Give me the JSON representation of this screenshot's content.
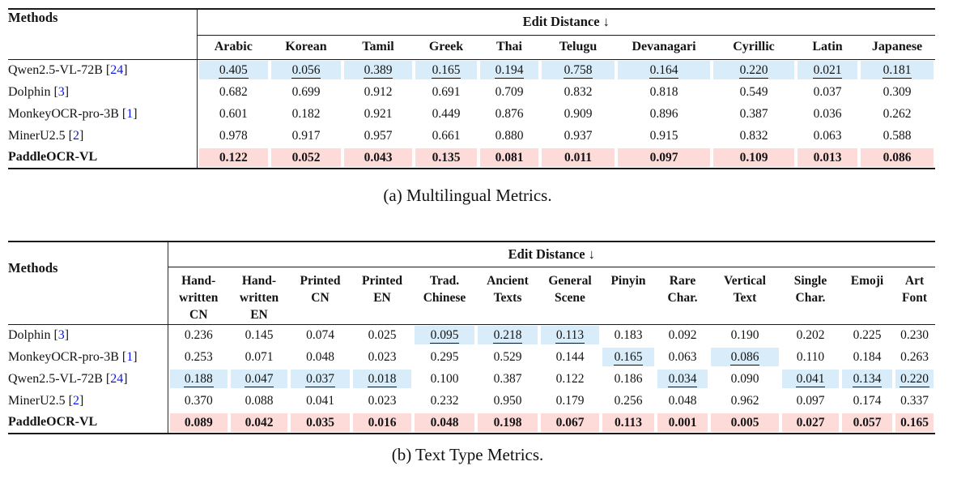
{
  "colors": {
    "highlight_blue": "#d8ecf9",
    "highlight_pink": "#fcdbd9",
    "citation_blue": "#0b16ee",
    "rule_black": "#1b1b1b"
  },
  "table_a": {
    "caption": "(a) Multilingual Metrics.",
    "methods_header": "Methods",
    "span_header": "Edit Distance ↓",
    "columns": [
      "Arabic",
      "Korean",
      "Tamil",
      "Greek",
      "Thai",
      "Telugu",
      "Devanagari",
      "Cyrillic",
      "Latin",
      "Japanese"
    ],
    "rows": [
      {
        "method": "Qwen2.5-VL-72B",
        "cite": "24",
        "row_style": "plain",
        "values": [
          "0.405",
          "0.056",
          "0.389",
          "0.165",
          "0.194",
          "0.758",
          "0.164",
          "0.220",
          "0.021",
          "0.181"
        ],
        "marked": [
          0,
          1,
          2,
          3,
          4,
          5,
          6,
          7,
          8,
          9
        ]
      },
      {
        "method": "Dolphin",
        "cite": "3",
        "row_style": "plain",
        "values": [
          "0.682",
          "0.699",
          "0.912",
          "0.691",
          "0.709",
          "0.832",
          "0.818",
          "0.549",
          "0.037",
          "0.309"
        ],
        "marked": []
      },
      {
        "method": "MonkeyOCR-pro-3B",
        "cite": "1",
        "row_style": "plain",
        "values": [
          "0.601",
          "0.182",
          "0.921",
          "0.449",
          "0.876",
          "0.909",
          "0.896",
          "0.387",
          "0.036",
          "0.262"
        ],
        "marked": []
      },
      {
        "method": "MinerU2.5",
        "cite": "2",
        "row_style": "plain",
        "values": [
          "0.978",
          "0.917",
          "0.957",
          "0.661",
          "0.880",
          "0.937",
          "0.915",
          "0.832",
          "0.063",
          "0.588"
        ],
        "marked": []
      },
      {
        "method": "PaddleOCR-VL",
        "cite": null,
        "row_style": "best-pink",
        "values": [
          "0.122",
          "0.052",
          "0.043",
          "0.135",
          "0.081",
          "0.011",
          "0.097",
          "0.109",
          "0.013",
          "0.086"
        ],
        "marked": []
      }
    ]
  },
  "table_b": {
    "caption": "(b) Text Type Metrics.",
    "methods_header": "Methods",
    "span_header": "Edit Distance ↓",
    "columns": [
      "Hand-written CN",
      "Hand-written EN",
      "Printed CN",
      "Printed EN",
      "Trad. Chinese",
      "Ancient Texts",
      "General Scene",
      "Pinyin",
      "Rare Char.",
      "Vertical Text",
      "Single Char.",
      "Emoji",
      "Art Font"
    ],
    "column_lines": [
      "Hand-\nwritten\nCN",
      "Hand-\nwritten\nEN",
      "Printed\nCN",
      "Printed\nEN",
      "Trad.\nChinese",
      "Ancient\nTexts",
      "General\nScene",
      "Pinyin",
      "Rare\nChar.",
      "Vertical\nText",
      "Single\nChar.",
      "Emoji",
      "Art\nFont"
    ],
    "rows": [
      {
        "method": "Dolphin",
        "cite": "3",
        "row_style": "plain",
        "values": [
          "0.236",
          "0.145",
          "0.074",
          "0.025",
          "0.095",
          "0.218",
          "0.113",
          "0.183",
          "0.092",
          "0.190",
          "0.202",
          "0.225",
          "0.230"
        ],
        "marked": [
          4,
          5,
          6
        ]
      },
      {
        "method": "MonkeyOCR-pro-3B",
        "cite": "1",
        "row_style": "plain",
        "values": [
          "0.253",
          "0.071",
          "0.048",
          "0.023",
          "0.295",
          "0.529",
          "0.144",
          "0.165",
          "0.063",
          "0.086",
          "0.110",
          "0.184",
          "0.263"
        ],
        "marked": [
          7,
          9
        ]
      },
      {
        "method": "Qwen2.5-VL-72B",
        "cite": "24",
        "row_style": "plain",
        "values": [
          "0.188",
          "0.047",
          "0.037",
          "0.018",
          "0.100",
          "0.387",
          "0.122",
          "0.186",
          "0.034",
          "0.090",
          "0.041",
          "0.134",
          "0.220"
        ],
        "marked": [
          0,
          1,
          2,
          3,
          8,
          10,
          11,
          12
        ]
      },
      {
        "method": "MinerU2.5",
        "cite": "2",
        "row_style": "plain",
        "values": [
          "0.370",
          "0.088",
          "0.041",
          "0.023",
          "0.232",
          "0.950",
          "0.179",
          "0.256",
          "0.048",
          "0.962",
          "0.097",
          "0.174",
          "0.337"
        ],
        "marked": []
      },
      {
        "method": "PaddleOCR-VL",
        "cite": null,
        "row_style": "best-pink",
        "values": [
          "0.089",
          "0.042",
          "0.035",
          "0.016",
          "0.048",
          "0.198",
          "0.067",
          "0.113",
          "0.001",
          "0.005",
          "0.027",
          "0.057",
          "0.165"
        ],
        "marked": []
      }
    ]
  }
}
